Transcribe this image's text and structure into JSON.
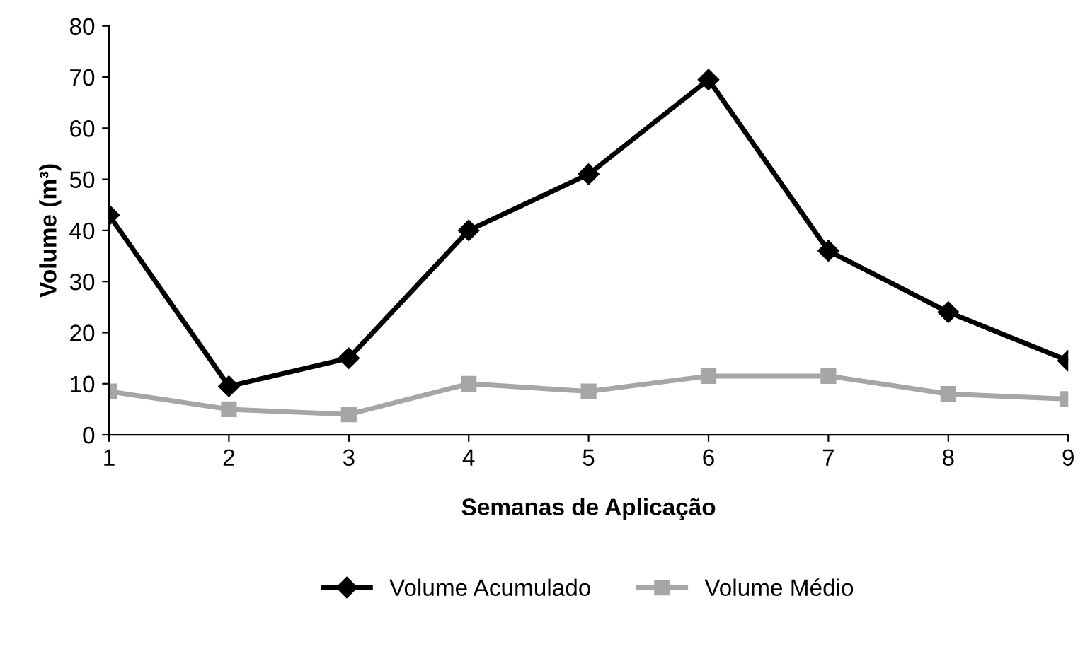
{
  "chart_data": {
    "type": "line",
    "xlabel": "Semanas de Aplicação",
    "ylabel": "Volume (m³)",
    "x": [
      1,
      2,
      3,
      4,
      5,
      6,
      7,
      8,
      9
    ],
    "series": [
      {
        "name": "Volume Acumulado",
        "color": "#000000",
        "marker": "diamond",
        "values": [
          43,
          9.5,
          15,
          40,
          51,
          69.5,
          36,
          24,
          14.5
        ]
      },
      {
        "name": "Volume Médio",
        "color": "#a6a6a6",
        "marker": "square",
        "values": [
          8.5,
          5,
          4,
          10,
          8.5,
          11.5,
          11.5,
          8,
          7
        ]
      }
    ],
    "xlim": [
      1,
      9
    ],
    "xticks": [
      1,
      2,
      3,
      4,
      5,
      6,
      7,
      8,
      9
    ],
    "ylim": [
      0,
      80
    ],
    "yticks": [
      0,
      10,
      20,
      30,
      40,
      50,
      60,
      70,
      80
    ],
    "grid": false,
    "legend": "bottom",
    "line_style": "solid"
  }
}
